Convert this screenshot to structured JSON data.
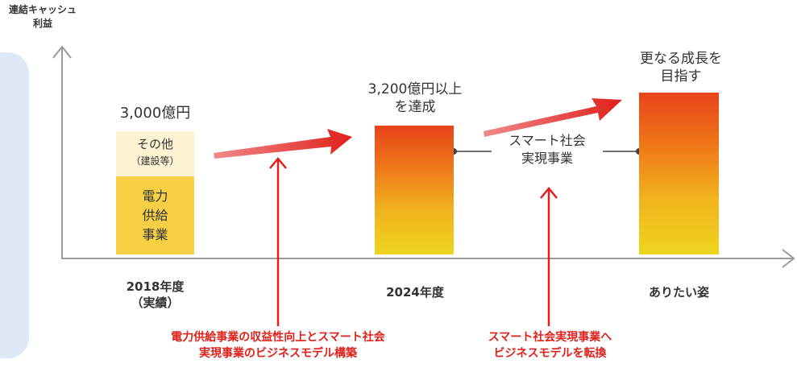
{
  "y_axis_title": [
    "連結キャッシュ",
    "利益"
  ],
  "bars": {
    "y2018": {
      "value_label": "3,000億円",
      "top_segment": {
        "label": "その他",
        "sublabel": "（建設等）"
      },
      "bottom_segment": {
        "label": [
          "電力",
          "供給",
          "事業"
        ]
      }
    },
    "y2024": {
      "label": [
        "3,200億円以上",
        "を達成"
      ]
    },
    "future": {
      "label": [
        "更なる成長を",
        "目指す"
      ]
    }
  },
  "connector_label": [
    "スマート社会",
    "実現事業"
  ],
  "x_labels": {
    "y2018": [
      "2018年度",
      "（実績）"
    ],
    "y2024": "2024年度",
    "future": "ありたい姿"
  },
  "annotations": {
    "left": [
      "電力供給事業の収益性向上とスマート社会",
      "実現事業のビジネスモデル構築"
    ],
    "right": [
      "スマート社会実現事業へ",
      "ビジネスモデルを転換"
    ]
  },
  "colors": {
    "red_accent": "#e0201a",
    "bar_top": "#e8441a",
    "bar_bottom": "#eed51f",
    "segment_light": "#fdf3d3",
    "segment_yellow": "#f7cf45",
    "panel": "#dfe9f5"
  }
}
